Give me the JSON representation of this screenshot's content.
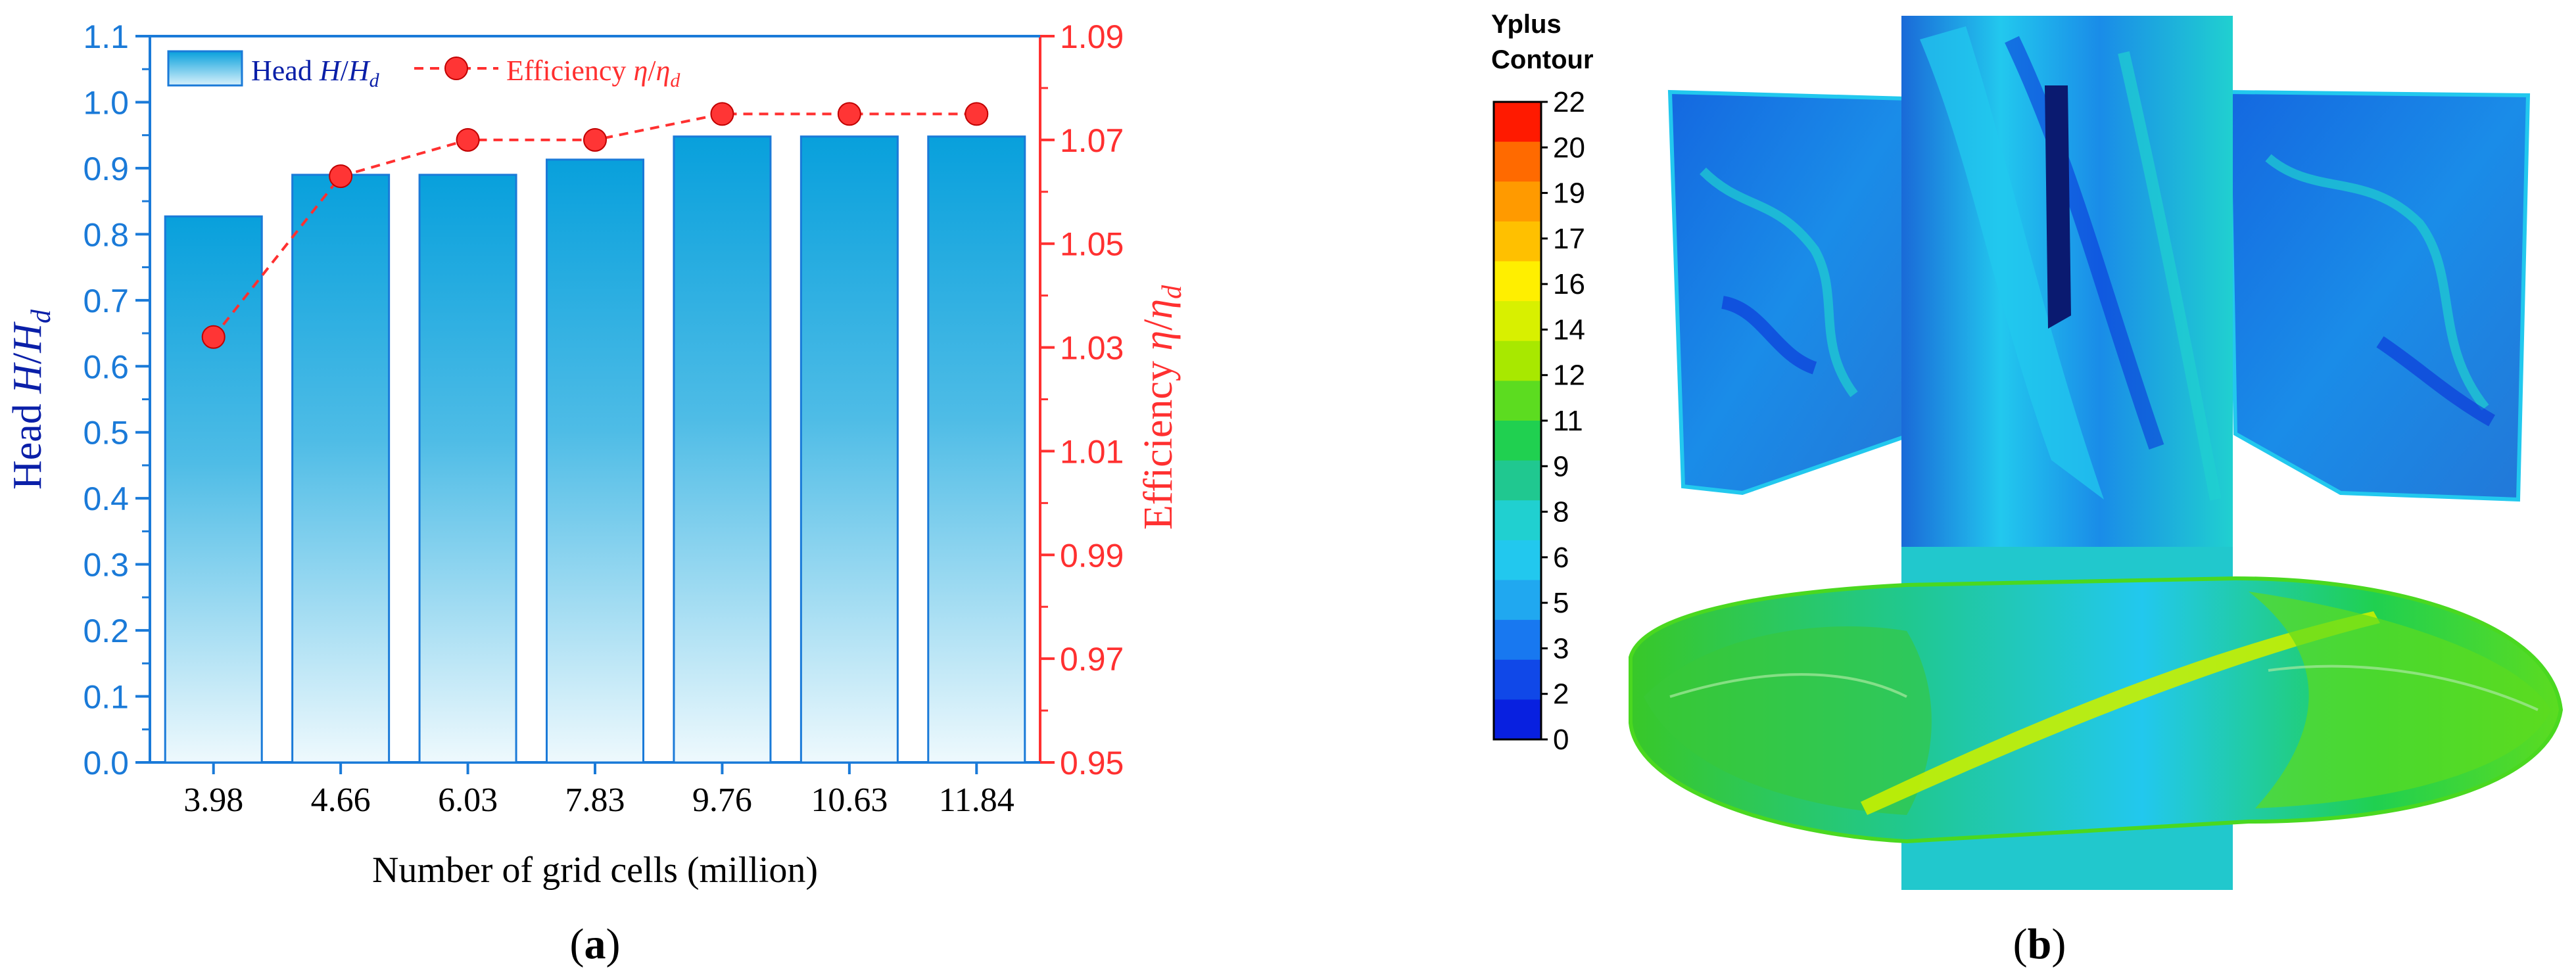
{
  "chart_data": {
    "type": "bar",
    "title": "",
    "categories": [
      "3.98",
      "4.66",
      "6.03",
      "7.83",
      "9.76",
      "10.63",
      "11.84"
    ],
    "series": [
      {
        "name": "Head H/H_d",
        "kind": "bar",
        "axis": "left",
        "color": "#0aa0dc",
        "values": [
          0.827,
          0.89,
          0.89,
          0.913,
          0.948,
          0.948,
          0.948
        ]
      },
      {
        "name": "Efficiency η/η_d",
        "kind": "line",
        "axis": "right",
        "color": "#ff3030",
        "values": [
          1.032,
          1.063,
          1.07,
          1.07,
          1.075,
          1.075,
          1.075
        ]
      }
    ],
    "xlabel": "Number of grid cells (million)",
    "ylabel": {
      "prefix": "Head ",
      "var": "H",
      "sep": "/",
      "sub_var": "H",
      "sub": "d"
    },
    "y2label": {
      "prefix": "Efficiency ",
      "var": "η",
      "sep": "/",
      "sub_var": "η",
      "sub": "d"
    },
    "ylim": [
      0.0,
      1.1
    ],
    "y2lim": [
      0.95,
      1.09
    ],
    "yticks": [
      "0.0",
      "0.1",
      "0.2",
      "0.3",
      "0.4",
      "0.5",
      "0.6",
      "0.7",
      "0.8",
      "0.9",
      "1.0",
      "1.1"
    ],
    "y2ticks": [
      "0.95",
      "0.97",
      "0.99",
      "1.01",
      "1.03",
      "1.05",
      "1.07",
      "1.09"
    ],
    "legend": {
      "placement": "top-left",
      "head": {
        "prefix": "Head ",
        "var": "H",
        "sep": "/",
        "sub_var": "H",
        "sub": "d"
      },
      "eff": {
        "prefix": "Efficiency ",
        "var": "η",
        "sep": "/",
        "sub_var": "η",
        "sub": "d"
      }
    },
    "panel_label": "a"
  },
  "contour": {
    "title_line1": "Yplus",
    "title_line2": "Contour",
    "levels": [
      "22",
      "20",
      "19",
      "17",
      "16",
      "14",
      "12",
      "11",
      "9",
      "8",
      "6",
      "5",
      "3",
      "2",
      "0"
    ],
    "colors": [
      "#ff1a00",
      "#ff6a00",
      "#ff9a00",
      "#ffc000",
      "#ffef00",
      "#d8f000",
      "#a8e800",
      "#5cdc20",
      "#20d050",
      "#20c890",
      "#20d0d0",
      "#22c8ee",
      "#20a8f0",
      "#1878f0",
      "#1048e8",
      "#0820e0"
    ],
    "panel_label": "b"
  },
  "colors": {
    "left_axis": "#1a7ad8",
    "right_axis": "#ff3030",
    "bar_top": "#08a0dc",
    "bar_bottom": "#eef9fd"
  }
}
